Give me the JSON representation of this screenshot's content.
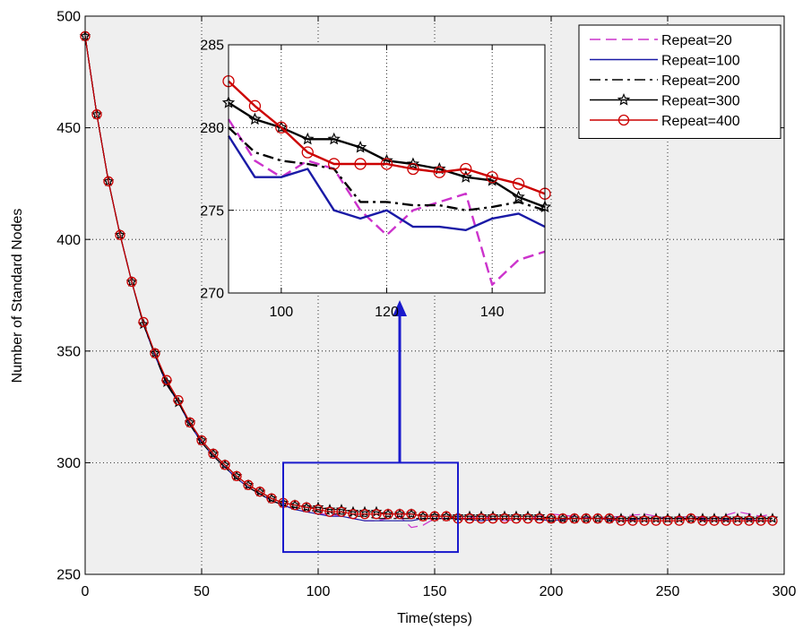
{
  "chart_data": [
    {
      "type": "line",
      "title": "",
      "xlabel": "Time(steps)",
      "ylabel": "Number of Standard Nodes",
      "xlim": [
        0,
        300
      ],
      "ylim": [
        250,
        500
      ],
      "xticks": [
        0,
        50,
        100,
        150,
        200,
        250,
        300
      ],
      "yticks": [
        250,
        300,
        350,
        400,
        450,
        500
      ],
      "grid": true,
      "legend_position": "top-right",
      "series": [
        {
          "name": "Repeat=20",
          "color": "#cc33cc",
          "style": "dashed",
          "marker": "none",
          "x": [
            0,
            5,
            10,
            15,
            20,
            25,
            30,
            35,
            40,
            45,
            50,
            55,
            60,
            65,
            70,
            75,
            80,
            85,
            90,
            95,
            100,
            105,
            110,
            115,
            120,
            125,
            130,
            135,
            140,
            145,
            150,
            160,
            170,
            180,
            190,
            200,
            210,
            220,
            230,
            240,
            250,
            260,
            270,
            280,
            290,
            295
          ],
          "y": [
            491,
            456,
            426,
            402,
            381,
            362,
            348,
            335,
            327,
            317,
            309,
            303,
            298,
            293,
            289,
            286,
            283,
            281,
            279,
            278,
            277,
            277,
            276,
            275,
            274,
            274,
            275,
            276,
            271,
            272,
            275,
            275,
            276,
            274,
            275,
            277,
            276,
            275,
            276,
            277,
            275,
            276,
            275,
            278,
            276,
            277
          ]
        },
        {
          "name": "Repeat=100",
          "color": "#1a1aa6",
          "style": "solid",
          "marker": "none",
          "x": [
            0,
            5,
            10,
            15,
            20,
            25,
            30,
            35,
            40,
            45,
            50,
            55,
            60,
            65,
            70,
            75,
            80,
            85,
            90,
            95,
            100,
            105,
            110,
            115,
            120,
            125,
            130,
            135,
            140,
            145,
            150,
            160,
            170,
            180,
            190,
            200,
            210,
            220,
            230,
            240,
            250,
            260,
            270,
            280,
            290,
            295
          ],
          "y": [
            491,
            456,
            426,
            402,
            381,
            362,
            348,
            335,
            327,
            317,
            309,
            303,
            298,
            293,
            289,
            286,
            283,
            281,
            279,
            278,
            277,
            276,
            276,
            275,
            274,
            274,
            274,
            274,
            274,
            275,
            275,
            275,
            274,
            275,
            275,
            274,
            275,
            275,
            274,
            275,
            275,
            275,
            274,
            275,
            274,
            274
          ]
        },
        {
          "name": "Repeat=200",
          "color": "#000000",
          "style": "dashdot",
          "marker": "none",
          "x": [
            0,
            5,
            10,
            15,
            20,
            25,
            30,
            35,
            40,
            45,
            50,
            55,
            60,
            65,
            70,
            75,
            80,
            85,
            90,
            95,
            100,
            105,
            110,
            115,
            120,
            125,
            130,
            135,
            140,
            145,
            150,
            160,
            170,
            180,
            190,
            200,
            210,
            220,
            230,
            240,
            250,
            260,
            270,
            280,
            290,
            295
          ],
          "y": [
            491,
            456,
            426,
            402,
            381,
            362,
            348,
            335,
            327,
            317,
            309,
            303,
            298,
            293,
            289,
            286,
            283,
            281,
            280,
            279,
            278,
            277,
            277,
            276,
            276,
            275,
            275,
            275,
            275,
            275,
            275,
            275,
            275,
            275,
            275,
            275,
            275,
            275,
            275,
            275,
            275,
            275,
            275,
            275,
            275,
            275
          ]
        },
        {
          "name": "Repeat=300",
          "color": "#000000",
          "style": "solid",
          "marker": "star",
          "x": [
            0,
            5,
            10,
            15,
            20,
            25,
            30,
            35,
            40,
            45,
            50,
            55,
            60,
            65,
            70,
            75,
            80,
            85,
            90,
            95,
            100,
            105,
            110,
            115,
            120,
            125,
            130,
            135,
            140,
            145,
            150,
            155,
            160,
            165,
            170,
            175,
            180,
            185,
            190,
            195,
            200,
            205,
            210,
            215,
            220,
            225,
            230,
            235,
            240,
            245,
            250,
            255,
            260,
            265,
            270,
            275,
            280,
            285,
            290,
            295
          ],
          "y": [
            491,
            456,
            426,
            402,
            381,
            362,
            349,
            336,
            327,
            318,
            310,
            304,
            299,
            294,
            290,
            287,
            284,
            282,
            281,
            280,
            280,
            279,
            279,
            278,
            278,
            278,
            277,
            277,
            277,
            276,
            276,
            276,
            276,
            276,
            276,
            276,
            276,
            276,
            276,
            276,
            275,
            275,
            275,
            275,
            275,
            275,
            275,
            275,
            275,
            275,
            275,
            275,
            275,
            275,
            275,
            275,
            275,
            275,
            275,
            275
          ]
        },
        {
          "name": "Repeat=400",
          "color": "#cc0000",
          "style": "solid",
          "marker": "circle",
          "x": [
            0,
            5,
            10,
            15,
            20,
            25,
            30,
            35,
            40,
            45,
            50,
            55,
            60,
            65,
            70,
            75,
            80,
            85,
            90,
            95,
            100,
            105,
            110,
            115,
            120,
            125,
            130,
            135,
            140,
            145,
            150,
            155,
            160,
            165,
            170,
            175,
            180,
            185,
            190,
            195,
            200,
            205,
            210,
            215,
            220,
            225,
            230,
            235,
            240,
            245,
            250,
            255,
            260,
            265,
            270,
            275,
            280,
            285,
            290,
            295
          ],
          "y": [
            491,
            456,
            426,
            402,
            381,
            363,
            349,
            337,
            328,
            318,
            310,
            304,
            299,
            294,
            290,
            287,
            284,
            282,
            281,
            280,
            279,
            278,
            278,
            277,
            277,
            277,
            277,
            277,
            277,
            276,
            276,
            276,
            275,
            275,
            275,
            275,
            275,
            275,
            275,
            275,
            275,
            275,
            275,
            275,
            275,
            275,
            274,
            274,
            274,
            274,
            274,
            274,
            275,
            274,
            274,
            274,
            274,
            274,
            274,
            274
          ]
        }
      ],
      "annotations": [
        {
          "type": "rectangle",
          "x_range": [
            85,
            160
          ],
          "y_range": [
            260,
            300
          ],
          "color": "#1a1acc"
        },
        {
          "type": "arrow",
          "from": [
            135,
            300
          ],
          "to_inset": true,
          "color": "#1a1acc"
        }
      ]
    },
    {
      "type": "line",
      "title": "",
      "xlabel": "",
      "ylabel": "",
      "xlim": [
        90,
        150
      ],
      "ylim": [
        270,
        285
      ],
      "xticks": [
        100,
        120,
        140
      ],
      "yticks": [
        270,
        275,
        280,
        285
      ],
      "grid": true,
      "series": [
        {
          "name": "Repeat=20",
          "color": "#cc33cc",
          "style": "dashed",
          "marker": "none",
          "x": [
            90,
            95,
            100,
            105,
            110,
            115,
            120,
            125,
            130,
            135,
            140,
            145,
            150
          ],
          "y": [
            280.5,
            278.0,
            277.0,
            278.0,
            277.5,
            275.0,
            273.5,
            275.0,
            275.5,
            276.0,
            270.5,
            272.0,
            272.5
          ]
        },
        {
          "name": "Repeat=100",
          "color": "#1a1aa6",
          "style": "solid",
          "marker": "none",
          "x": [
            90,
            95,
            100,
            105,
            110,
            115,
            120,
            125,
            130,
            135,
            140,
            145,
            150
          ],
          "y": [
            279.5,
            277.0,
            277.0,
            277.5,
            275.0,
            274.5,
            275.0,
            274.0,
            274.0,
            273.8,
            274.5,
            274.8,
            274.0
          ]
        },
        {
          "name": "Repeat=200",
          "color": "#000000",
          "style": "dashdot",
          "marker": "none",
          "x": [
            90,
            95,
            100,
            105,
            110,
            115,
            120,
            125,
            130,
            135,
            140,
            145,
            150
          ],
          "y": [
            280.0,
            278.5,
            278.0,
            277.8,
            277.5,
            275.5,
            275.5,
            275.3,
            275.3,
            275.0,
            275.2,
            275.5,
            275.0
          ]
        },
        {
          "name": "Repeat=300",
          "color": "#000000",
          "style": "solid",
          "marker": "star",
          "x": [
            90,
            95,
            100,
            105,
            110,
            115,
            120,
            125,
            130,
            135,
            140,
            145,
            150
          ],
          "y": [
            281.5,
            280.5,
            280.0,
            279.3,
            279.3,
            278.8,
            278.0,
            277.8,
            277.5,
            277.0,
            276.8,
            275.8,
            275.2
          ]
        },
        {
          "name": "Repeat=400",
          "color": "#cc0000",
          "style": "solid",
          "marker": "circle",
          "x": [
            90,
            95,
            100,
            105,
            110,
            115,
            120,
            125,
            130,
            135,
            140,
            145,
            150
          ],
          "y": [
            282.8,
            281.3,
            280.0,
            278.5,
            277.8,
            277.8,
            277.8,
            277.5,
            277.3,
            277.5,
            277.0,
            276.6,
            276.0
          ]
        }
      ]
    }
  ]
}
